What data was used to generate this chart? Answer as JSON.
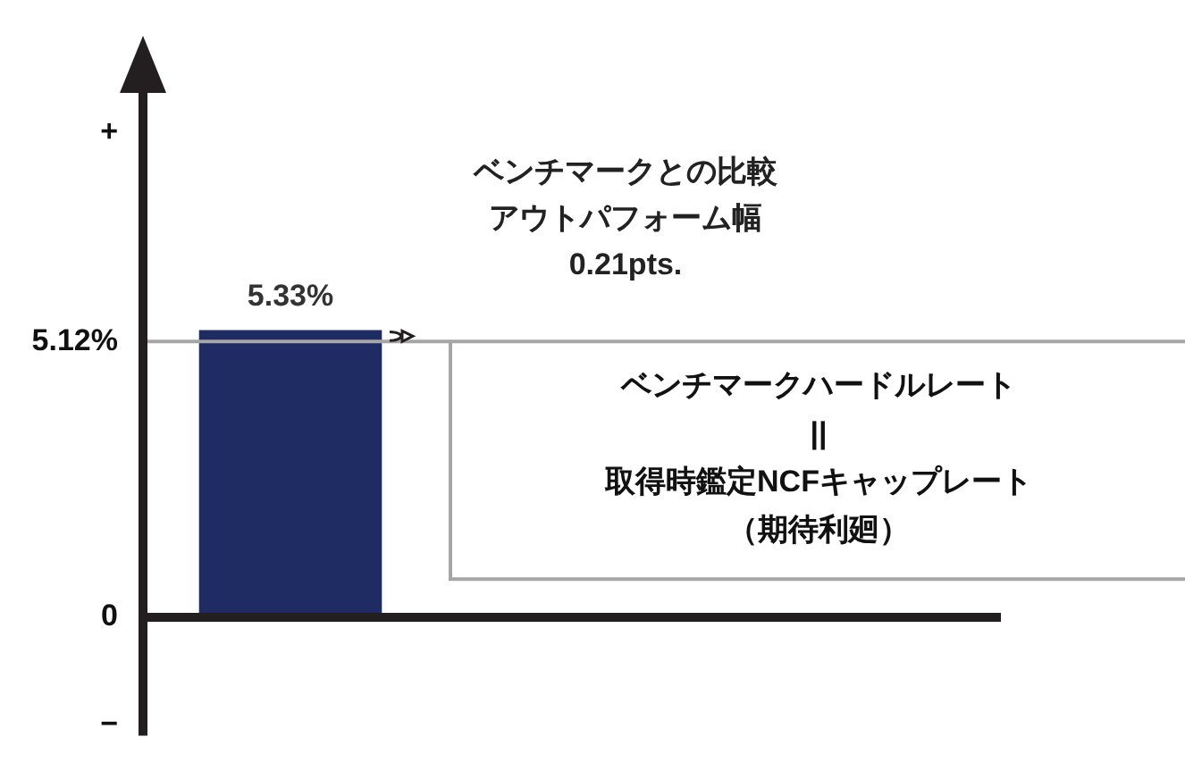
{
  "chart_data": {
    "type": "bar",
    "categories": [
      null
    ],
    "values": [
      5.33
    ],
    "color": "#1f2b63",
    "value_labels": [
      "5.33%"
    ],
    "ylim": [
      -2.2,
      9.8
    ],
    "yticks": [
      {
        "value": -2,
        "label": "−"
      },
      0,
      {
        "value": 5.12,
        "label": "5.12%"
      },
      {
        "value": 9,
        "label": "+"
      }
    ],
    "ref_lines": [
      {
        "axis": "y",
        "value": 5.12,
        "label": "ベンチマークハードルレート",
        "color": "#a6a6a6"
      }
    ],
    "annotations": [
      "ベンチマークとの比較",
      "アウトパフォーム幅",
      "0.21pts.",
      "||",
      "取得時鑑定NCFキャップレート",
      "（期待利廻）"
    ],
    "grid": false,
    "legend": false
  }
}
